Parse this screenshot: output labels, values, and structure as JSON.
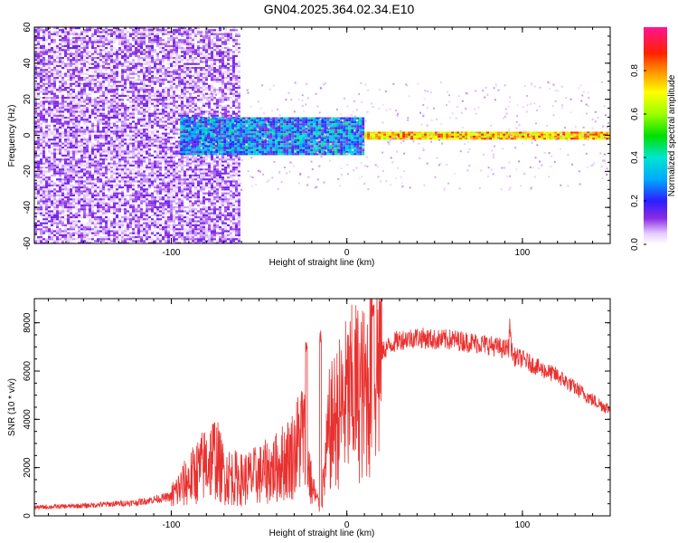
{
  "title": "GN04.2025.364.02.34.E10",
  "chart_data": [
    {
      "type": "heatmap",
      "xlabel": "Height of straight line (km)",
      "ylabel": "Frequency (Hz)",
      "xlim": [
        -178,
        150
      ],
      "ylim": [
        -60,
        60
      ],
      "xticks": [
        -100,
        0,
        100
      ],
      "yticks": [
        -60,
        -40,
        -20,
        0,
        20,
        40,
        60
      ],
      "colorbar": {
        "label": "Normalized spectral amplitude",
        "range": [
          0,
          1
        ],
        "ticks": [
          0.0,
          0.2,
          0.4,
          0.6,
          0.8
        ]
      },
      "regions": [
        {
          "x": [
            -178,
            -62
          ],
          "freq": [
            -60,
            60
          ],
          "amplitude": [
            0.02,
            0.15
          ]
        },
        {
          "x": [
            -95,
            10
          ],
          "freq": [
            -10,
            10
          ],
          "amplitude": [
            0.1,
            0.45
          ]
        },
        {
          "x": [
            10,
            150
          ],
          "freq": [
            -2,
            2
          ],
          "amplitude": [
            0.6,
            0.9
          ]
        }
      ]
    },
    {
      "type": "line",
      "xlabel": "Height of straight line (km)",
      "ylabel": "SNR (10 * v/v)",
      "xlim": [
        -178,
        150
      ],
      "ylim": [
        0,
        9000
      ],
      "xticks": [
        -100,
        0,
        100
      ],
      "yticks": [
        0,
        2000,
        4000,
        6000,
        8000
      ],
      "color": "#e8312f",
      "x": [
        -178,
        -150,
        -120,
        -100,
        -90,
        -80,
        -75,
        -70,
        -60,
        -50,
        -40,
        -30,
        -25,
        -20,
        -15,
        -10,
        -5,
        0,
        5,
        10,
        15,
        20,
        25,
        30,
        40,
        50,
        60,
        70,
        80,
        90,
        93,
        95,
        100,
        110,
        120,
        130,
        140,
        150
      ],
      "y": [
        350,
        420,
        550,
        800,
        1500,
        2200,
        2500,
        1700,
        1500,
        1700,
        2000,
        2600,
        3500,
        1200,
        300,
        3500,
        4200,
        4800,
        5200,
        5000,
        6200,
        6800,
        7100,
        7300,
        7400,
        7300,
        7300,
        7200,
        7100,
        6900,
        7000,
        6600,
        6500,
        6100,
        5800,
        5300,
        4800,
        4400
      ],
      "spikes": [
        {
          "x": -23,
          "y": 7300
        },
        {
          "x": -15,
          "y": 7900
        },
        {
          "x": 15,
          "y": 9000
        },
        {
          "x": 93,
          "y": 8200
        }
      ]
    }
  ]
}
